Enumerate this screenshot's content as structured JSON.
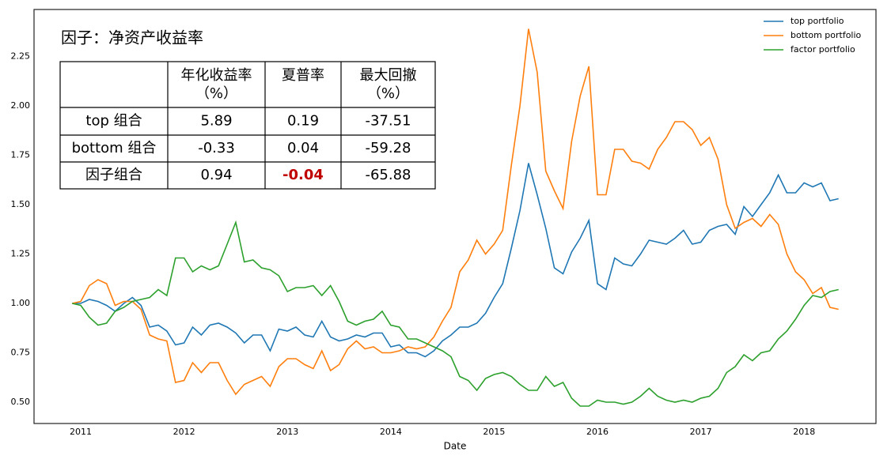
{
  "chart_data": {
    "type": "line",
    "title": "因子：净资产收益率",
    "xlabel": "Date",
    "x": [
      2010.917,
      2011.0,
      2011.083,
      2011.167,
      2011.25,
      2011.333,
      2011.417,
      2011.5,
      2011.583,
      2011.667,
      2011.75,
      2011.833,
      2011.917,
      2012.0,
      2012.083,
      2012.167,
      2012.25,
      2012.333,
      2012.417,
      2012.5,
      2012.583,
      2012.667,
      2012.75,
      2012.833,
      2012.917,
      2013.0,
      2013.083,
      2013.167,
      2013.25,
      2013.333,
      2013.417,
      2013.5,
      2013.583,
      2013.667,
      2013.75,
      2013.833,
      2013.917,
      2014.0,
      2014.083,
      2014.167,
      2014.25,
      2014.333,
      2014.417,
      2014.5,
      2014.583,
      2014.667,
      2014.75,
      2014.833,
      2014.917,
      2015.0,
      2015.083,
      2015.167,
      2015.25,
      2015.333,
      2015.417,
      2015.5,
      2015.583,
      2015.667,
      2015.75,
      2015.833,
      2015.917,
      2016.0,
      2016.083,
      2016.167,
      2016.25,
      2016.333,
      2016.417,
      2016.5,
      2016.583,
      2016.667,
      2016.75,
      2016.833,
      2016.917,
      2017.0,
      2017.083,
      2017.167,
      2017.25,
      2017.333,
      2017.417,
      2017.5,
      2017.583,
      2017.667,
      2017.75,
      2017.833,
      2017.917,
      2018.0,
      2018.083,
      2018.167,
      2018.25,
      2018.333
    ],
    "series": [
      {
        "name": "top portfolio",
        "color": "#1f77b4",
        "values": [
          1.0,
          1.0,
          1.02,
          1.01,
          0.99,
          0.96,
          1.0,
          1.03,
          0.99,
          0.88,
          0.89,
          0.86,
          0.79,
          0.8,
          0.88,
          0.84,
          0.89,
          0.9,
          0.88,
          0.85,
          0.8,
          0.84,
          0.84,
          0.76,
          0.87,
          0.86,
          0.88,
          0.84,
          0.83,
          0.91,
          0.83,
          0.81,
          0.82,
          0.84,
          0.83,
          0.85,
          0.85,
          0.78,
          0.79,
          0.75,
          0.75,
          0.73,
          0.76,
          0.81,
          0.84,
          0.88,
          0.88,
          0.9,
          0.95,
          1.03,
          1.1,
          1.28,
          1.47,
          1.71,
          1.55,
          1.38,
          1.18,
          1.15,
          1.26,
          1.33,
          1.42,
          1.1,
          1.07,
          1.23,
          1.2,
          1.19,
          1.25,
          1.32,
          1.31,
          1.3,
          1.33,
          1.37,
          1.3,
          1.31,
          1.37,
          1.39,
          1.4,
          1.35,
          1.49,
          1.44,
          1.5,
          1.56,
          1.65,
          1.56,
          1.56,
          1.61,
          1.59,
          1.61,
          1.52,
          1.53
        ]
      },
      {
        "name": "bottom portfolio",
        "color": "#ff7f0e",
        "values": [
          1.0,
          1.01,
          1.09,
          1.12,
          1.1,
          0.99,
          1.01,
          1.01,
          0.97,
          0.84,
          0.82,
          0.81,
          0.6,
          0.61,
          0.7,
          0.65,
          0.7,
          0.7,
          0.61,
          0.54,
          0.59,
          0.61,
          0.63,
          0.58,
          0.68,
          0.72,
          0.72,
          0.69,
          0.67,
          0.76,
          0.66,
          0.69,
          0.77,
          0.81,
          0.77,
          0.78,
          0.75,
          0.75,
          0.76,
          0.78,
          0.77,
          0.78,
          0.83,
          0.91,
          0.98,
          1.16,
          1.22,
          1.32,
          1.25,
          1.3,
          1.37,
          1.7,
          2.0,
          2.39,
          2.17,
          1.67,
          1.57,
          1.48,
          1.82,
          2.05,
          2.2,
          1.55,
          1.55,
          1.78,
          1.78,
          1.72,
          1.71,
          1.68,
          1.78,
          1.84,
          1.92,
          1.92,
          1.88,
          1.8,
          1.84,
          1.73,
          1.5,
          1.38,
          1.41,
          1.43,
          1.39,
          1.45,
          1.4,
          1.25,
          1.16,
          1.12,
          1.05,
          1.08,
          0.98,
          0.97
        ]
      },
      {
        "name": "factor portfolio",
        "color": "#2ca02c",
        "values": [
          1.0,
          0.99,
          0.93,
          0.89,
          0.9,
          0.96,
          0.98,
          1.01,
          1.02,
          1.03,
          1.07,
          1.04,
          1.23,
          1.23,
          1.16,
          1.19,
          1.17,
          1.19,
          1.3,
          1.41,
          1.21,
          1.22,
          1.18,
          1.17,
          1.14,
          1.06,
          1.08,
          1.08,
          1.09,
          1.04,
          1.09,
          1.01,
          0.91,
          0.89,
          0.91,
          0.92,
          0.96,
          0.89,
          0.88,
          0.82,
          0.82,
          0.8,
          0.78,
          0.76,
          0.73,
          0.63,
          0.61,
          0.56,
          0.62,
          0.64,
          0.65,
          0.63,
          0.59,
          0.56,
          0.56,
          0.63,
          0.58,
          0.6,
          0.52,
          0.48,
          0.48,
          0.51,
          0.5,
          0.5,
          0.49,
          0.5,
          0.53,
          0.57,
          0.53,
          0.51,
          0.5,
          0.51,
          0.5,
          0.52,
          0.53,
          0.57,
          0.65,
          0.68,
          0.74,
          0.71,
          0.75,
          0.76,
          0.82,
          0.86,
          0.92,
          0.99,
          1.04,
          1.03,
          1.06,
          1.07
        ]
      }
    ],
    "xlim": [
      2010.548,
      2018.695
    ],
    "xticks": [
      2011,
      2012,
      2013,
      2014,
      2015,
      2016,
      2017,
      2018
    ],
    "ylim": [
      0.392,
      2.488
    ],
    "yticks": [
      {
        "value": 0.5,
        "label": "0.50"
      },
      0.75,
      {
        "value": 1,
        "label": "1.00"
      },
      1.25,
      {
        "value": 1.5,
        "label": "1.50"
      },
      1.75,
      {
        "value": 2,
        "label": "2.00"
      },
      2.25
    ],
    "legend": "upper right",
    "table": {
      "columns": [
        [
          "年化收益率",
          "（%）"
        ],
        [
          "夏普率"
        ],
        [
          "最大回撤",
          "（%）"
        ]
      ],
      "rows": [
        [
          "top 组合",
          5.89,
          0.19,
          -37.51
        ],
        [
          "bottom 组合",
          -0.33,
          0.04,
          -59.28
        ],
        [
          "因子组合",
          0.94,
          -0.04,
          -65.88
        ]
      ]
    }
  }
}
